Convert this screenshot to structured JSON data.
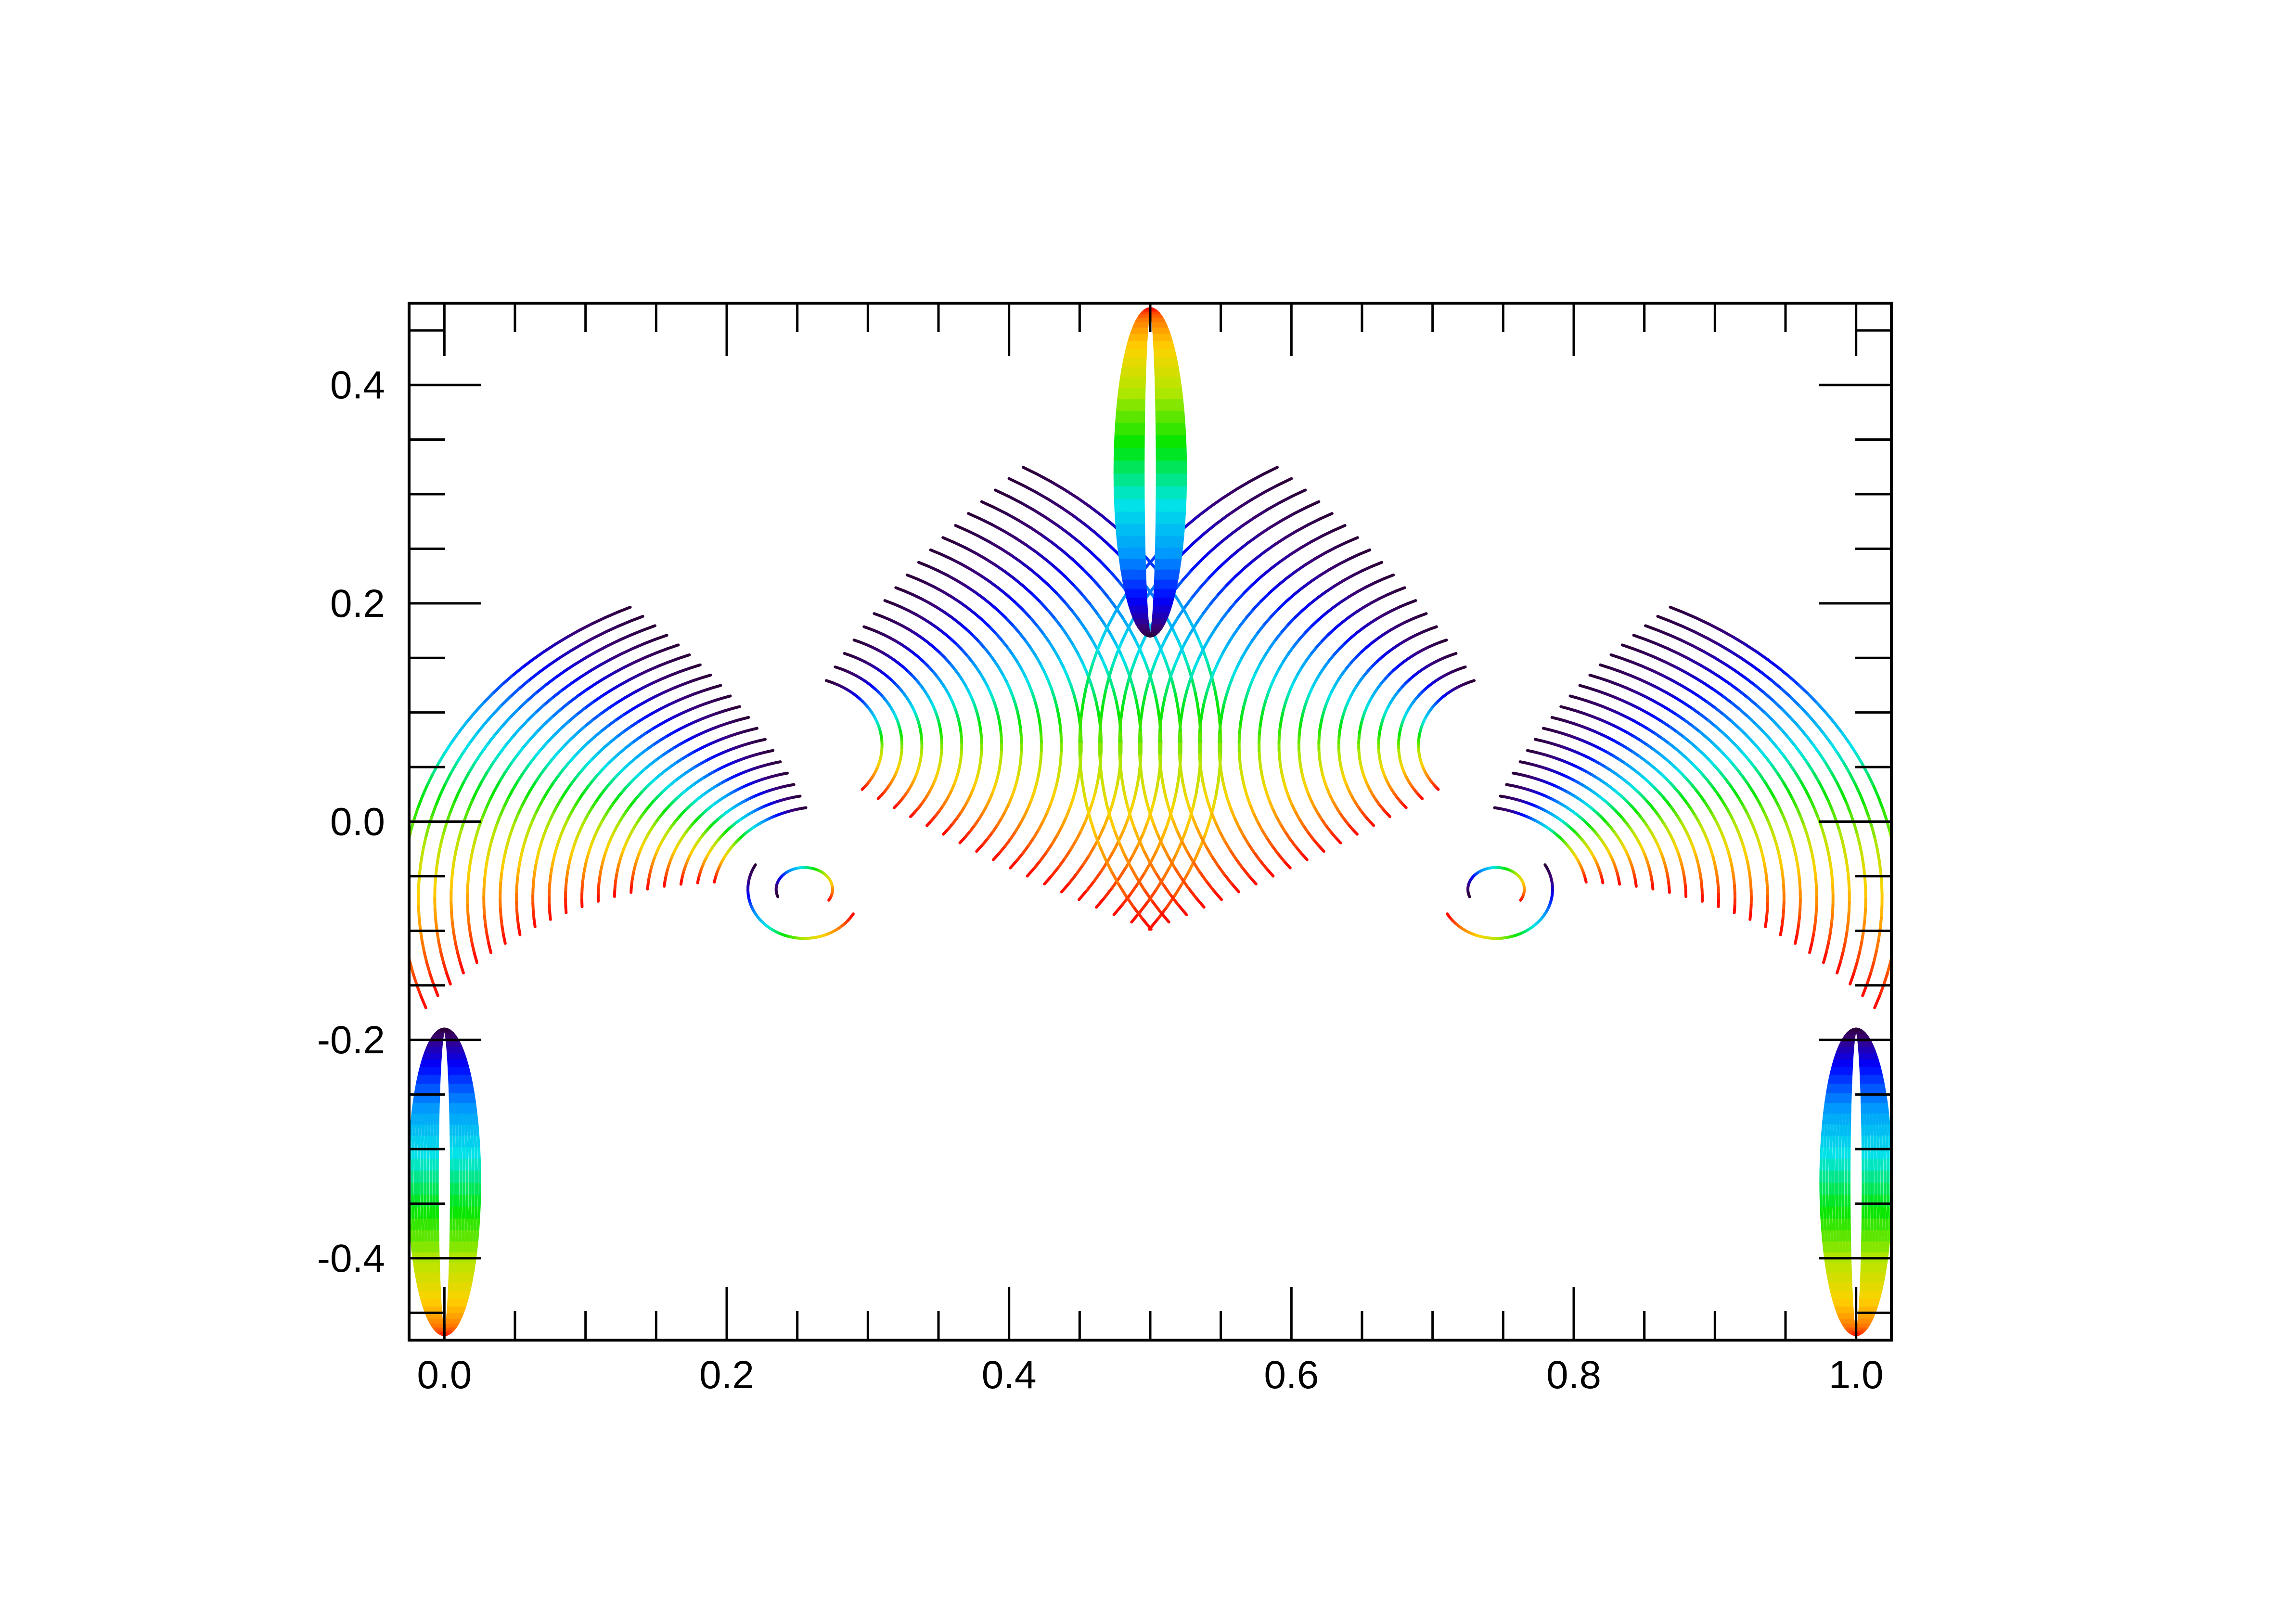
{
  "chart_data": {
    "type": "line",
    "title": "",
    "xlabel": "",
    "ylabel": "",
    "xlim": [
      -0.025,
      1.025
    ],
    "ylim": [
      -0.475,
      0.475
    ],
    "x_ticks": [
      "0.0",
      "0.2",
      "0.4",
      "0.6",
      "0.8",
      "1.0"
    ],
    "x_tick_values": [
      0.0,
      0.2,
      0.4,
      0.6,
      0.8,
      1.0
    ],
    "y_ticks": [
      "0.4",
      "0.2",
      "0.0",
      "-0.2",
      "-0.4"
    ],
    "y_tick_values": [
      0.4,
      0.2,
      0.0,
      -0.2,
      -0.4
    ],
    "grid": false,
    "legend": "none",
    "description_of_marks": "Families of circular arcs colored along a rainbow colormap (dark purple to red), forming a symmetric pattern about x = 0.5",
    "colormap": [
      "#2a0033",
      "#3a007a",
      "#0000ff",
      "#0096ff",
      "#00e6e6",
      "#00e600",
      "#b4e600",
      "#ffd200",
      "#ff7800",
      "#ff0000"
    ],
    "arcs": [
      {
        "cx": 0.25,
        "cy": -0.07,
        "r": 0.03,
        "a0": 150,
        "a1": 330
      },
      {
        "cx": 0.25,
        "cy": -0.07,
        "r": 0.06,
        "a0": 140,
        "a1": 330
      },
      {
        "cx": 0.25,
        "cy": -0.07,
        "r": 0.1,
        "a0": 120,
        "a1": 340
      },
      {
        "cx": 0.25,
        "cy": -0.07,
        "r": 0.15,
        "a0": 100,
        "a1": 320
      },
      {
        "cx": 0.25,
        "cy": -0.07,
        "r": 0.2,
        "a0": 100,
        "a1": 300
      }
    ],
    "axis_color": "#000000"
  }
}
